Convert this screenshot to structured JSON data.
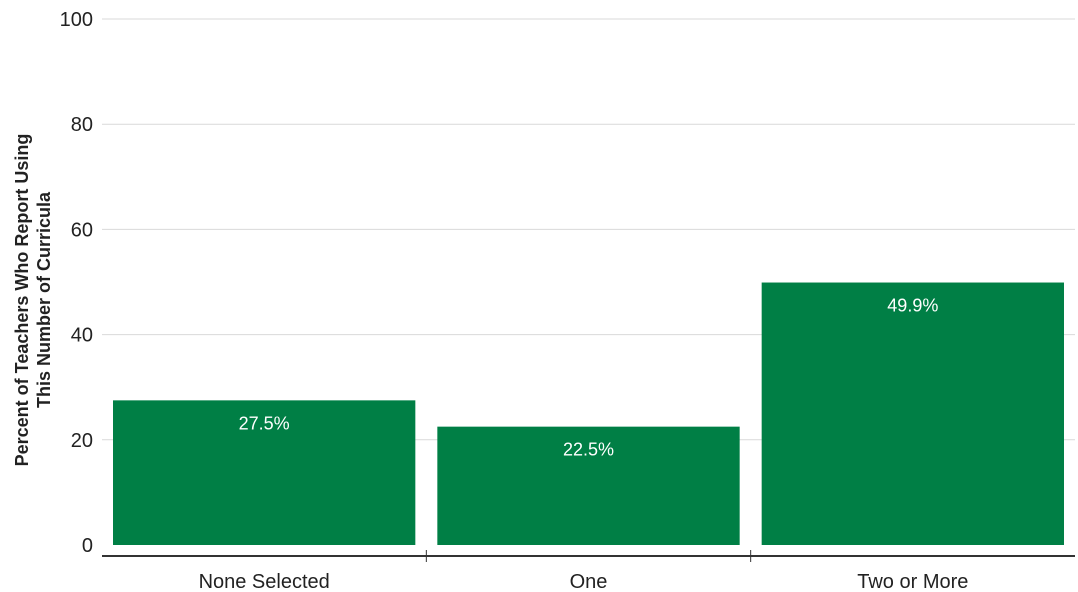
{
  "chart_data": {
    "type": "bar",
    "title": "",
    "xlabel": "",
    "ylabel_lines": [
      "Percent of Teachers Who Report Using",
      "This Number of Curricula"
    ],
    "categories": [
      "None Selected",
      "One",
      "Two or More"
    ],
    "values": [
      27.5,
      22.5,
      49.9
    ],
    "value_labels": [
      "27.5%",
      "22.5%",
      "49.9%"
    ],
    "ylim": [
      0,
      100
    ],
    "yticks": [
      0,
      20,
      40,
      60,
      80,
      100
    ],
    "grid": true,
    "legend": "none",
    "colors": {
      "bar": "#007f45",
      "grid": "#d9d9d9",
      "axis": "#333333",
      "text": "#222222",
      "bar_label": "#ffffff"
    }
  }
}
